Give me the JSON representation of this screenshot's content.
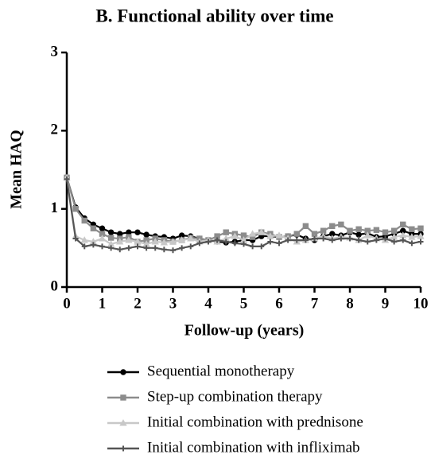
{
  "chart_data": {
    "type": "line",
    "title": "B. Functional ability over time",
    "x_label": "Follow-up (years)",
    "y_label": "Mean HAQ",
    "x": [
      0,
      0.25,
      0.5,
      0.75,
      1,
      1.25,
      1.5,
      1.75,
      2,
      2.25,
      2.5,
      2.75,
      3,
      3.25,
      3.5,
      3.75,
      4,
      4.25,
      4.5,
      4.75,
      5,
      5.25,
      5.5,
      5.75,
      6,
      6.25,
      6.5,
      6.75,
      7,
      7.25,
      7.5,
      7.75,
      8,
      8.25,
      8.5,
      8.75,
      9,
      9.25,
      9.5,
      9.75,
      10
    ],
    "series": [
      {
        "name": "Sequential monotherapy",
        "color": "#000000",
        "marker": "circle",
        "values": [
          1.4,
          1.02,
          0.88,
          0.8,
          0.75,
          0.7,
          0.68,
          0.7,
          0.7,
          0.67,
          0.65,
          0.64,
          0.62,
          0.66,
          0.65,
          0.62,
          0.6,
          0.58,
          0.57,
          0.58,
          0.6,
          0.6,
          0.65,
          0.65,
          0.64,
          0.65,
          0.67,
          0.62,
          0.6,
          0.65,
          0.68,
          0.66,
          0.7,
          0.67,
          0.69,
          0.64,
          0.65,
          0.68,
          0.72,
          0.68,
          0.68
        ]
      },
      {
        "name": "Step-up combination therapy",
        "color": "#8c8c8c",
        "marker": "square",
        "values": [
          1.4,
          1.0,
          0.85,
          0.75,
          0.68,
          0.63,
          0.62,
          0.64,
          0.58,
          0.6,
          0.62,
          0.6,
          0.58,
          0.6,
          0.63,
          0.62,
          0.6,
          0.65,
          0.7,
          0.68,
          0.66,
          0.64,
          0.7,
          0.68,
          0.64,
          0.65,
          0.68,
          0.78,
          0.68,
          0.72,
          0.78,
          0.8,
          0.72,
          0.74,
          0.72,
          0.73,
          0.7,
          0.72,
          0.8,
          0.74,
          0.75
        ]
      },
      {
        "name": "Initial combination with prednisone",
        "color": "#c8c8c8",
        "marker": "triangle",
        "values": [
          1.4,
          0.65,
          0.6,
          0.58,
          0.62,
          0.55,
          0.58,
          0.6,
          0.58,
          0.55,
          0.58,
          0.57,
          0.58,
          0.6,
          0.62,
          0.58,
          0.6,
          0.58,
          0.62,
          0.65,
          0.6,
          0.68,
          0.7,
          0.65,
          0.66,
          0.62,
          0.58,
          0.6,
          0.62,
          0.65,
          0.62,
          0.64,
          0.63,
          0.6,
          0.66,
          0.62,
          0.6,
          0.64,
          0.66,
          0.64,
          0.65
        ]
      },
      {
        "name": "Initial combination with infliximab",
        "color": "#555555",
        "marker": "cross",
        "values": [
          1.38,
          0.62,
          0.52,
          0.54,
          0.52,
          0.5,
          0.48,
          0.5,
          0.52,
          0.5,
          0.5,
          0.48,
          0.47,
          0.5,
          0.52,
          0.56,
          0.58,
          0.6,
          0.58,
          0.56,
          0.55,
          0.52,
          0.52,
          0.58,
          0.56,
          0.6,
          0.6,
          0.6,
          0.62,
          0.62,
          0.6,
          0.62,
          0.62,
          0.6,
          0.58,
          0.6,
          0.62,
          0.58,
          0.6,
          0.56,
          0.58
        ]
      }
    ],
    "xlim": [
      0,
      10
    ],
    "xticks": [
      0,
      1,
      2,
      3,
      4,
      5,
      6,
      7,
      8,
      9,
      10
    ],
    "ylim": [
      0,
      3
    ],
    "yticks": [
      0,
      1,
      2,
      3
    ]
  }
}
